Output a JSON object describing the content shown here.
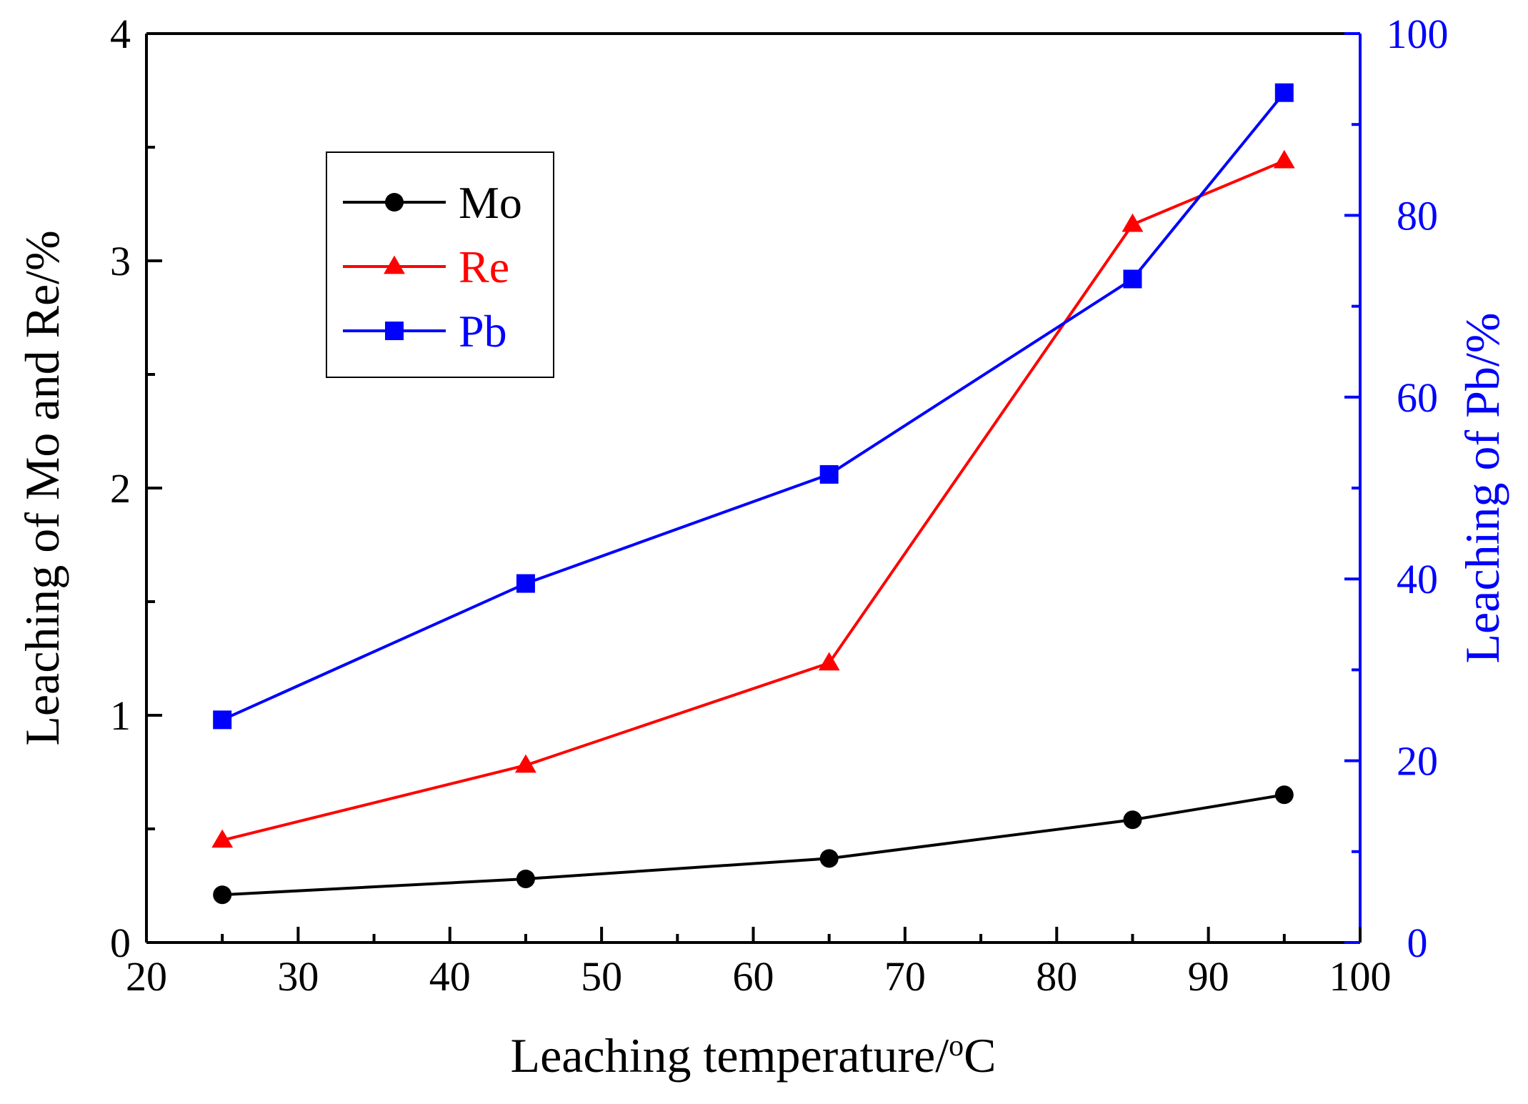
{
  "chart_data": {
    "type": "line",
    "x": [
      25,
      45,
      65,
      85,
      95
    ],
    "xlabel": "Leaching temperature/",
    "xlabel_degree": "o",
    "xlabel_unit": "C",
    "ylabel_left": "Leaching of Mo and Re/%",
    "ylabel_right": "Leaching of Pb/%",
    "xlim": [
      20,
      100
    ],
    "ylim_left": [
      0,
      4
    ],
    "ylim_right": [
      0,
      100
    ],
    "x_ticks": [
      "20",
      "30",
      "40",
      "50",
      "60",
      "70",
      "80",
      "90",
      "100"
    ],
    "y_left_ticks": [
      "0",
      "1",
      "2",
      "3",
      "4"
    ],
    "y_right_ticks": [
      "0",
      "20",
      "40",
      "60",
      "80",
      "100"
    ],
    "series": [
      {
        "name": "Mo",
        "axis": "left",
        "color": "#000000",
        "marker": "circle",
        "values": [
          0.21,
          0.28,
          0.37,
          0.54,
          0.65
        ]
      },
      {
        "name": "Re",
        "axis": "left",
        "color": "#ff0000",
        "marker": "triangle",
        "values": [
          0.45,
          0.78,
          1.23,
          3.16,
          3.44
        ]
      },
      {
        "name": "Pb",
        "axis": "right",
        "color": "#0000ff",
        "marker": "square",
        "values": [
          24.5,
          39.5,
          51.5,
          73.0,
          93.5
        ]
      }
    ],
    "legend_position": "top-left"
  }
}
